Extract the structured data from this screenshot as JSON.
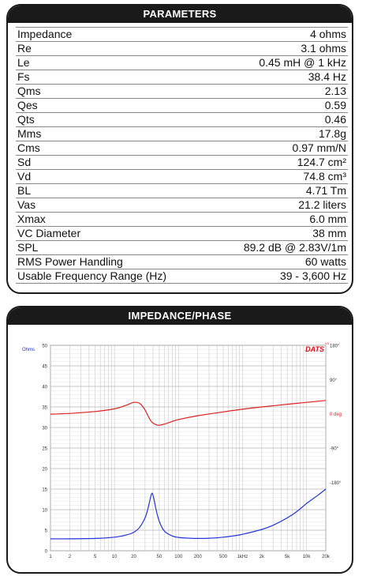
{
  "parameters": {
    "title": "PARAMETERS",
    "rows": [
      {
        "name": "Impedance",
        "value": "4 ohms"
      },
      {
        "name": "Re",
        "value": "3.1 ohms"
      },
      {
        "name": "Le",
        "value": "0.45 mH @ 1 kHz"
      },
      {
        "name": "Fs",
        "value": "38.4 Hz"
      },
      {
        "name": "Qms",
        "value": "2.13"
      },
      {
        "name": "Qes",
        "value": "0.59"
      },
      {
        "name": "Qts",
        "value": "0.46"
      },
      {
        "name": "Mms",
        "value": "17.8g"
      },
      {
        "name": "Cms",
        "value": "0.97 mm/N"
      },
      {
        "name": "Sd",
        "value": "124.7 cm²"
      },
      {
        "name": "Vd",
        "value": "74.8 cm³"
      },
      {
        "name": "BL",
        "value": "4.71 Tm"
      },
      {
        "name": "Vas",
        "value": "21.2 liters"
      },
      {
        "name": "Xmax",
        "value": "6.0 mm"
      },
      {
        "name": "VC Diameter",
        "value": "38 mm"
      },
      {
        "name": "SPL",
        "value": "89.2 dB @ 2.83V/1m"
      },
      {
        "name": "RMS Power Handling",
        "value": "60 watts"
      },
      {
        "name": "Usable Frequency Range (Hz)",
        "value": "39 - 3,600 Hz"
      }
    ]
  },
  "impedance_panel": {
    "title": "IMPEDANCE/PHASE",
    "brand": "DATS",
    "brand_sup": "V3",
    "colors": {
      "impedance": "#2233dd",
      "phase": "#dd2222",
      "grid": "#c8c8c8"
    }
  },
  "chart_data": {
    "type": "line",
    "x_scale": "log",
    "xlim": [
      1,
      20000
    ],
    "x_ticks": [
      {
        "v": 1,
        "l": "1"
      },
      {
        "v": 2,
        "l": "2"
      },
      {
        "v": 5,
        "l": "5"
      },
      {
        "v": 10,
        "l": "10"
      },
      {
        "v": 20,
        "l": "20"
      },
      {
        "v": 50,
        "l": "50"
      },
      {
        "v": 100,
        "l": "100"
      },
      {
        "v": 200,
        "l": "200"
      },
      {
        "v": 500,
        "l": "500"
      },
      {
        "v": 1000,
        "l": "1kHz"
      },
      {
        "v": 2000,
        "l": "2k"
      },
      {
        "v": 5000,
        "l": "5k"
      },
      {
        "v": 10000,
        "l": "10k"
      },
      {
        "v": 20000,
        "l": "20k"
      }
    ],
    "ylabel_left": "Ohms",
    "ylim_left": [
      0,
      50
    ],
    "y_ticks_left": [
      "0",
      "5",
      "10",
      "15",
      "20",
      "25",
      "30",
      "35",
      "40",
      "45",
      "50"
    ],
    "ylim_right": [
      -360,
      180
    ],
    "y_ticks_right": [
      {
        "v": 180,
        "l": "180°"
      },
      {
        "v": 90,
        "l": "90°"
      },
      {
        "v": 0,
        "l": "0 deg"
      },
      {
        "v": -90,
        "l": "-90°"
      },
      {
        "v": -180,
        "l": "-180°"
      }
    ],
    "series": [
      {
        "axis": "left",
        "x": [
          1,
          2,
          5,
          10,
          15,
          20,
          25,
          30,
          33,
          36,
          38.4,
          41,
          45,
          50,
          60,
          80,
          100,
          150,
          200,
          300,
          500,
          700,
          1000,
          2000,
          3000,
          5000,
          7000,
          10000,
          15000,
          20000
        ],
        "y": [
          2.9,
          2.9,
          3.0,
          3.3,
          3.8,
          4.5,
          5.8,
          8.0,
          10.0,
          12.5,
          14.0,
          12.8,
          9.8,
          7.2,
          4.8,
          3.6,
          3.25,
          3.05,
          3.0,
          3.05,
          3.3,
          3.6,
          4.0,
          5.2,
          6.2,
          8.0,
          9.5,
          11.5,
          13.5,
          15.0
        ]
      },
      {
        "axis": "right",
        "x": [
          1,
          2,
          5,
          10,
          15,
          20,
          25,
          30,
          35,
          38.4,
          45,
          50,
          60,
          80,
          100,
          200,
          500,
          1000,
          2000,
          5000,
          10000,
          20000
        ],
        "y": [
          -1,
          1,
          6,
          13,
          22,
          30,
          27,
          10,
          -12,
          -22,
          -29,
          -30,
          -27,
          -20,
          -15,
          -5,
          5,
          12,
          18,
          25,
          30,
          35
        ]
      }
    ]
  }
}
